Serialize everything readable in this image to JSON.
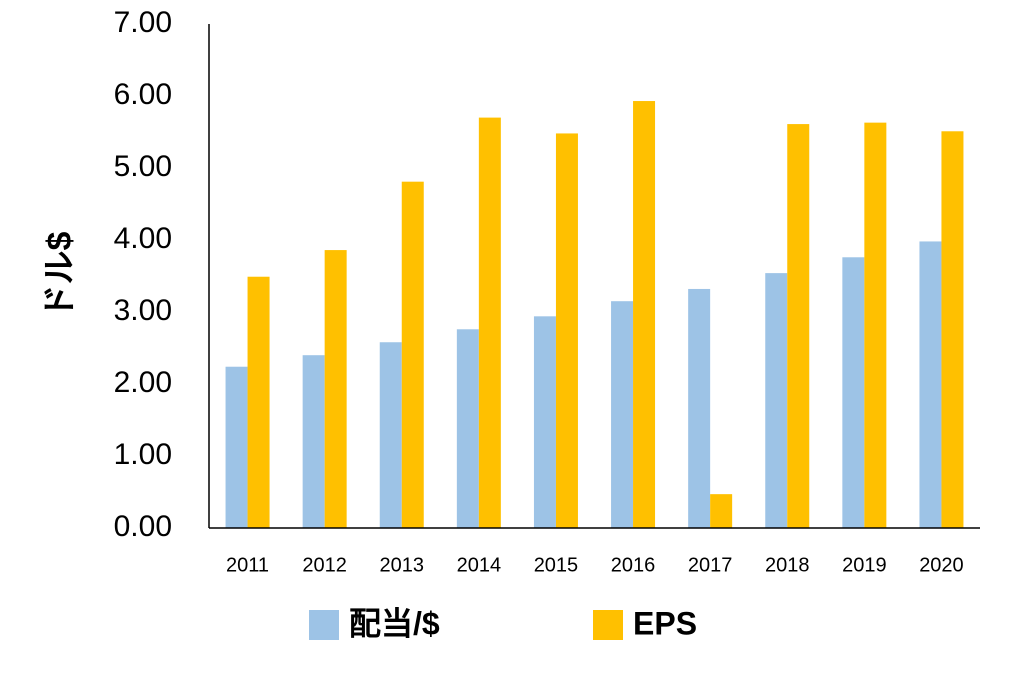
{
  "chart_data": {
    "type": "bar",
    "title": "",
    "xlabel": "",
    "ylabel": "ドル$",
    "ylim": [
      0,
      7
    ],
    "y_ticks": [
      "0.00",
      "1.00",
      "2.00",
      "3.00",
      "4.00",
      "5.00",
      "6.00",
      "7.00"
    ],
    "categories": [
      "2011",
      "2012",
      "2013",
      "2014",
      "2015",
      "2016",
      "2017",
      "2018",
      "2019",
      "2020"
    ],
    "series": [
      {
        "name": "配当/$",
        "color": "#9DC3E6",
        "values": [
          2.24,
          2.4,
          2.58,
          2.76,
          2.94,
          3.15,
          3.32,
          3.54,
          3.76,
          3.98
        ]
      },
      {
        "name": "EPS",
        "color": "#FFC000",
        "values": [
          3.49,
          3.86,
          4.81,
          5.7,
          5.48,
          5.93,
          0.47,
          5.61,
          5.63,
          5.51
        ]
      }
    ],
    "grid": false,
    "legend_position": "bottom"
  }
}
